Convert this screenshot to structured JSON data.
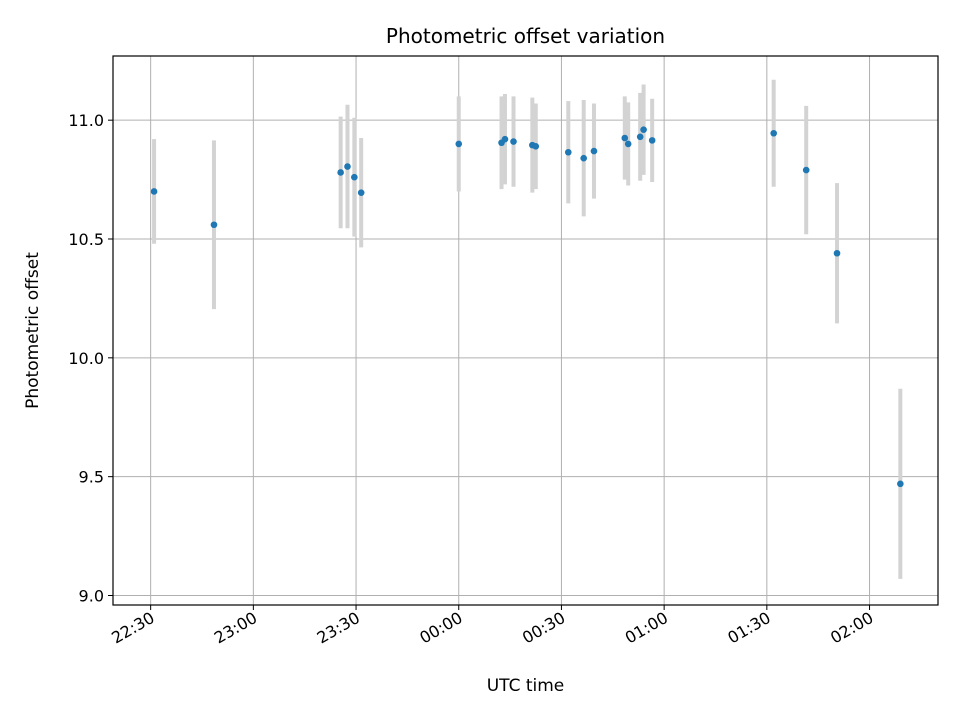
{
  "chart_data": {
    "type": "scatter",
    "title": "Photometric offset variation",
    "xlabel": "UTC time",
    "ylabel": "Photometric offset",
    "x_ticks": [
      "22:30",
      "23:00",
      "23:30",
      "00:00",
      "00:30",
      "01:00",
      "01:30",
      "02:00"
    ],
    "x_tick_minutes": [
      -90,
      -60,
      -30,
      0,
      30,
      60,
      90,
      120
    ],
    "xlim_minutes": [
      -101,
      140
    ],
    "ylim": [
      8.96,
      11.27
    ],
    "y_ticks": [
      9.0,
      9.5,
      10.0,
      10.5,
      11.0
    ],
    "grid": true,
    "point_color": "#1f77b4",
    "errorbar_color": "#d3d3d3",
    "series": [
      {
        "points": [
          {
            "t": -89,
            "y": 10.7,
            "err": 0.22
          },
          {
            "t": -71.5,
            "y": 10.56,
            "err": 0.355
          },
          {
            "t": -34.5,
            "y": 10.78,
            "err": 0.235
          },
          {
            "t": -32.5,
            "y": 10.805,
            "err": 0.26
          },
          {
            "t": -30.5,
            "y": 10.76,
            "err": 0.25
          },
          {
            "t": -28.5,
            "y": 10.695,
            "err": 0.23
          },
          {
            "t": 0,
            "y": 10.9,
            "err": 0.2
          },
          {
            "t": 12.5,
            "y": 10.905,
            "err": 0.195
          },
          {
            "t": 13.5,
            "y": 10.92,
            "err": 0.19
          },
          {
            "t": 16,
            "y": 10.91,
            "err": 0.19
          },
          {
            "t": 21.5,
            "y": 10.895,
            "err": 0.2
          },
          {
            "t": 22.5,
            "y": 10.89,
            "err": 0.18
          },
          {
            "t": 32,
            "y": 10.865,
            "err": 0.215
          },
          {
            "t": 36.5,
            "y": 10.84,
            "err": 0.245
          },
          {
            "t": 39.5,
            "y": 10.87,
            "err": 0.2
          },
          {
            "t": 48.5,
            "y": 10.925,
            "err": 0.175
          },
          {
            "t": 49.5,
            "y": 10.9,
            "err": 0.175
          },
          {
            "t": 53,
            "y": 10.93,
            "err": 0.185
          },
          {
            "t": 54,
            "y": 10.96,
            "err": 0.19
          },
          {
            "t": 56.5,
            "y": 10.915,
            "err": 0.175
          },
          {
            "t": 92,
            "y": 10.945,
            "err": 0.225
          },
          {
            "t": 101.5,
            "y": 10.79,
            "err": 0.27
          },
          {
            "t": 110.5,
            "y": 10.44,
            "err": 0.295
          },
          {
            "t": 129,
            "y": 9.47,
            "err": 0.4
          }
        ]
      }
    ]
  }
}
